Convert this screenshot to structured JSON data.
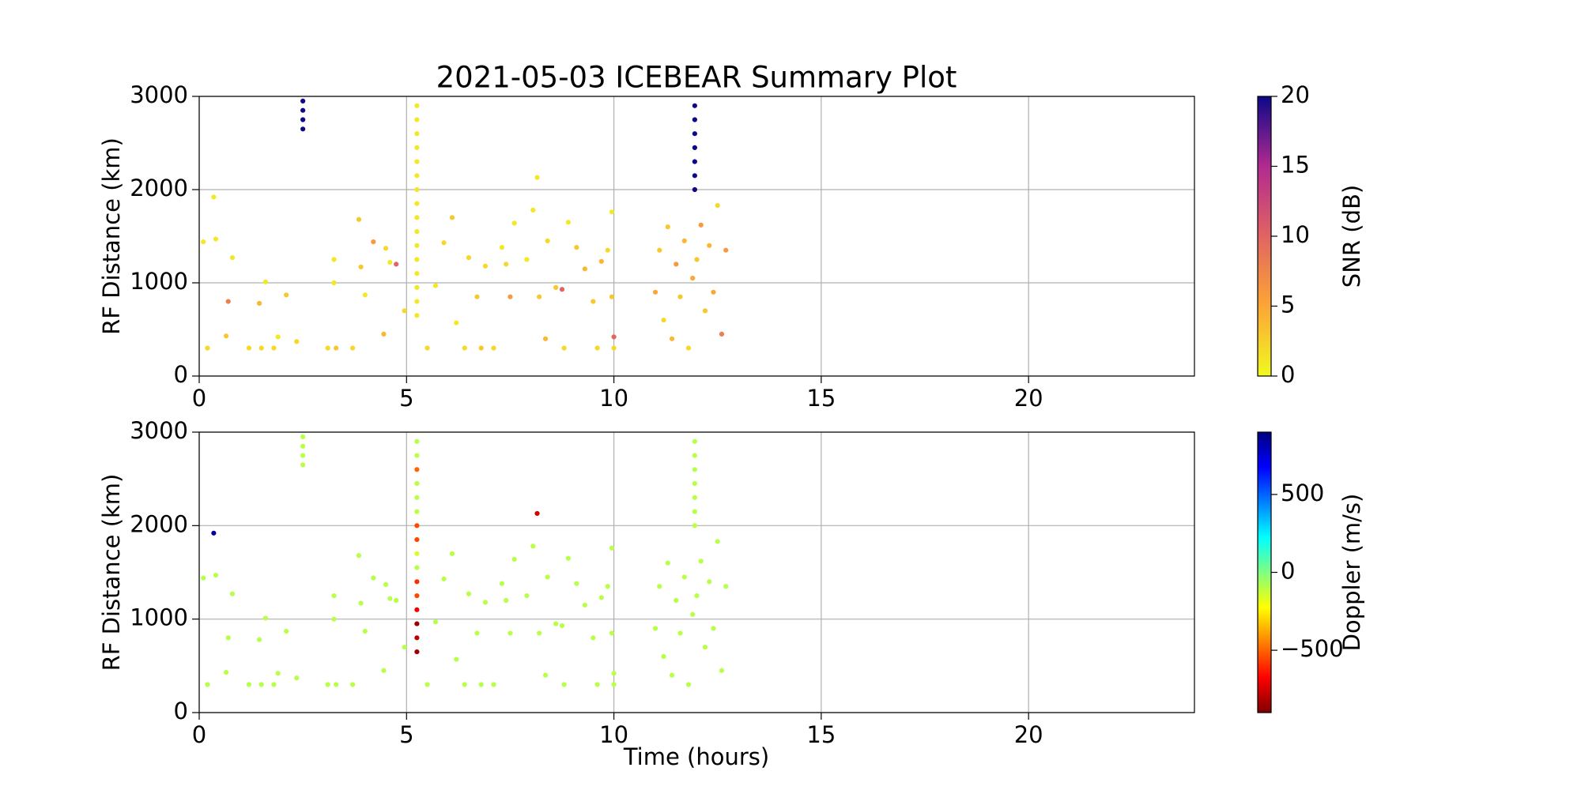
{
  "chart_data": [
    {
      "type": "scatter",
      "title": "2021-05-03 ICEBEAR Summary Plot",
      "ylabel": "RF Distance (km)",
      "xlim": [
        0,
        24
      ],
      "xticks": [
        0,
        5,
        10,
        15,
        20
      ],
      "ylim": [
        0,
        3000
      ],
      "yticks": [
        0,
        1000,
        2000,
        3000
      ],
      "grid": true,
      "colorbar": {
        "label": "SNR (dB)",
        "lim": [
          0,
          20
        ],
        "ticks": [
          0,
          5,
          10,
          15,
          20
        ],
        "colormap": [
          "#f0f921",
          "#fca636",
          "#e16462",
          "#b12a90",
          "#0d0887"
        ]
      },
      "x": [
        0.2,
        0.1,
        0.35,
        0.4,
        0.7,
        0.65,
        0.8,
        1.2,
        1.5,
        1.45,
        1.6,
        1.8,
        1.9,
        2.1,
        2.35,
        3.1,
        3.25,
        3.3,
        3.25,
        3.7,
        3.85,
        3.9,
        4.0,
        4.2,
        4.45,
        4.5,
        4.6,
        4.75,
        4.95,
        5.5,
        5.7,
        5.9,
        6.1,
        6.2,
        6.4,
        6.5,
        6.7,
        6.8,
        6.9,
        7.1,
        7.3,
        7.5,
        7.4,
        7.6,
        7.9,
        8.05,
        8.15,
        8.2,
        8.35,
        8.4,
        8.6,
        8.8,
        8.75,
        8.9,
        9.1,
        9.3,
        9.5,
        9.6,
        9.7,
        9.85,
        9.95,
        9.95,
        10.0,
        10.0,
        11.0,
        11.1,
        11.2,
        11.3,
        11.4,
        11.5,
        11.6,
        11.7,
        11.8,
        11.9,
        12.0,
        12.1,
        12.2,
        12.3,
        12.4,
        12.5,
        12.6,
        12.7,
        2.5,
        2.5,
        2.5,
        2.5,
        5.25,
        5.25,
        5.25,
        5.25,
        5.25,
        5.25,
        5.25,
        5.25,
        5.25,
        5.25,
        5.25,
        5.25,
        5.25,
        5.25,
        5.25,
        5.25,
        11.95,
        11.95,
        11.95,
        11.95,
        11.95,
        11.95,
        11.95
      ],
      "y": [
        300,
        1440,
        1920,
        1470,
        800,
        430,
        1270,
        300,
        300,
        780,
        1010,
        300,
        420,
        870,
        370,
        300,
        1250,
        300,
        1000,
        300,
        1680,
        1170,
        870,
        1440,
        450,
        1370,
        1220,
        1200,
        700,
        300,
        970,
        1430,
        1700,
        570,
        300,
        1270,
        850,
        300,
        1180,
        300,
        1380,
        850,
        1200,
        1640,
        1250,
        1780,
        2130,
        850,
        400,
        1450,
        950,
        300,
        930,
        1650,
        1380,
        1150,
        800,
        300,
        1230,
        1350,
        850,
        1760,
        420,
        300,
        900,
        1350,
        600,
        1600,
        400,
        1200,
        850,
        1450,
        300,
        1050,
        1250,
        1620,
        700,
        1400,
        900,
        1830,
        450,
        1350,
        2650,
        2750,
        2850,
        2950,
        650,
        800,
        950,
        1100,
        1250,
        1400,
        1550,
        1700,
        1850,
        2000,
        2150,
        2300,
        2450,
        2600,
        2750,
        2900,
        2000,
        2150,
        2300,
        2450,
        2600,
        2750,
        2900
      ],
      "c": [
        2,
        1,
        1,
        1,
        8,
        3,
        1,
        2,
        2,
        4,
        1,
        2,
        1,
        3,
        2,
        2,
        1,
        3,
        1,
        2,
        3,
        3,
        1,
        6,
        4,
        2,
        1,
        10,
        2,
        2,
        1,
        2,
        3,
        1,
        2,
        2,
        3,
        3,
        2,
        2,
        1,
        6,
        2,
        1,
        1,
        1,
        1,
        3,
        4,
        2,
        3,
        2,
        10,
        1,
        3,
        4,
        3,
        2,
        4,
        2,
        3,
        1,
        10,
        2,
        5,
        3,
        2,
        3,
        4,
        6,
        3,
        4,
        2,
        5,
        3,
        6,
        3,
        4,
        5,
        2,
        8,
        6,
        20,
        20,
        20,
        20,
        1,
        1,
        1,
        1,
        1,
        1,
        1,
        1,
        1,
        1,
        1,
        1,
        1,
        1,
        1,
        1,
        20,
        20,
        20,
        20,
        20,
        20,
        20
      ]
    },
    {
      "type": "scatter",
      "ylabel": "RF Distance (km)",
      "xlabel": "Time (hours)",
      "xlim": [
        0,
        24
      ],
      "xticks": [
        0,
        5,
        10,
        15,
        20
      ],
      "ylim": [
        0,
        3000
      ],
      "yticks": [
        0,
        1000,
        2000,
        3000
      ],
      "grid": true,
      "colorbar": {
        "label": "Doppler (m/s)",
        "lim": [
          -900,
          900
        ],
        "ticks": [
          {
            "value": -500,
            "label": "−500"
          },
          0,
          500
        ],
        "colormap": [
          "#800000",
          "#ff0000",
          "#ff8000",
          "#ffff00",
          "#80ff80",
          "#00ffff",
          "#0080ff",
          "#0000ff",
          "#000080"
        ]
      },
      "x": [
        0.2,
        0.1,
        0.35,
        0.4,
        0.7,
        0.65,
        0.8,
        1.2,
        1.5,
        1.45,
        1.6,
        1.8,
        1.9,
        2.1,
        2.35,
        3.1,
        3.25,
        3.3,
        3.25,
        3.7,
        3.85,
        3.9,
        4.0,
        4.2,
        4.45,
        4.5,
        4.6,
        4.75,
        4.95,
        5.5,
        5.7,
        5.9,
        6.1,
        6.2,
        6.4,
        6.5,
        6.7,
        6.8,
        6.9,
        7.1,
        7.3,
        7.5,
        7.4,
        7.6,
        7.9,
        8.05,
        8.15,
        8.2,
        8.35,
        8.4,
        8.6,
        8.8,
        8.75,
        8.9,
        9.1,
        9.3,
        9.5,
        9.6,
        9.7,
        9.85,
        9.95,
        9.95,
        10.0,
        10.0,
        11.0,
        11.1,
        11.2,
        11.3,
        11.4,
        11.5,
        11.6,
        11.7,
        11.8,
        11.9,
        12.0,
        12.1,
        12.2,
        12.3,
        12.4,
        12.5,
        12.6,
        12.7,
        2.5,
        2.5,
        2.5,
        2.5,
        5.25,
        5.25,
        5.25,
        5.25,
        5.25,
        5.25,
        5.25,
        5.25,
        5.25,
        5.25,
        5.25,
        5.25,
        5.25,
        5.25,
        5.25,
        5.25,
        11.95,
        11.95,
        11.95,
        11.95,
        11.95,
        11.95,
        11.95
      ],
      "y": [
        300,
        1440,
        1920,
        1470,
        800,
        430,
        1270,
        300,
        300,
        780,
        1010,
        300,
        420,
        870,
        370,
        300,
        1250,
        300,
        1000,
        300,
        1680,
        1170,
        870,
        1440,
        450,
        1370,
        1220,
        1200,
        700,
        300,
        970,
        1430,
        1700,
        570,
        300,
        1270,
        850,
        300,
        1180,
        300,
        1380,
        850,
        1200,
        1640,
        1250,
        1780,
        2130,
        850,
        400,
        1450,
        950,
        300,
        930,
        1650,
        1380,
        1150,
        800,
        300,
        1230,
        1350,
        850,
        1760,
        420,
        300,
        900,
        1350,
        600,
        1600,
        400,
        1200,
        850,
        1450,
        300,
        1050,
        1250,
        1620,
        700,
        1400,
        900,
        1830,
        450,
        1350,
        2650,
        2750,
        2850,
        2950,
        650,
        800,
        950,
        1100,
        1250,
        1400,
        1550,
        1700,
        1850,
        2000,
        2150,
        2300,
        2450,
        2600,
        2750,
        2900,
        2000,
        2150,
        2300,
        2450,
        2600,
        2750,
        2900
      ],
      "c": [
        -100,
        -100,
        850,
        -100,
        -100,
        -100,
        -100,
        -100,
        -100,
        -100,
        -100,
        -100,
        -100,
        -100,
        -100,
        -100,
        -100,
        -100,
        -100,
        -100,
        -100,
        -100,
        -100,
        -100,
        -100,
        -100,
        -100,
        -100,
        -100,
        -100,
        -100,
        -100,
        -100,
        -100,
        -100,
        -100,
        -100,
        -100,
        -100,
        -100,
        -100,
        -100,
        -100,
        -100,
        -100,
        -100,
        -750,
        -100,
        -100,
        -100,
        -100,
        -100,
        -100,
        -100,
        -100,
        -100,
        -100,
        -100,
        -100,
        -100,
        -100,
        -100,
        -100,
        -100,
        -100,
        -100,
        -100,
        -100,
        -100,
        -100,
        -100,
        -100,
        -100,
        -100,
        -100,
        -100,
        -100,
        -100,
        -100,
        -100,
        -100,
        -100,
        -100,
        -100,
        -100,
        -100,
        -850,
        -800,
        -850,
        -700,
        -550,
        -600,
        -100,
        -150,
        -550,
        -550,
        -100,
        -100,
        -100,
        -500,
        -100,
        -100,
        -100,
        -100,
        -100,
        -100,
        -100,
        -100,
        -100
      ]
    }
  ]
}
